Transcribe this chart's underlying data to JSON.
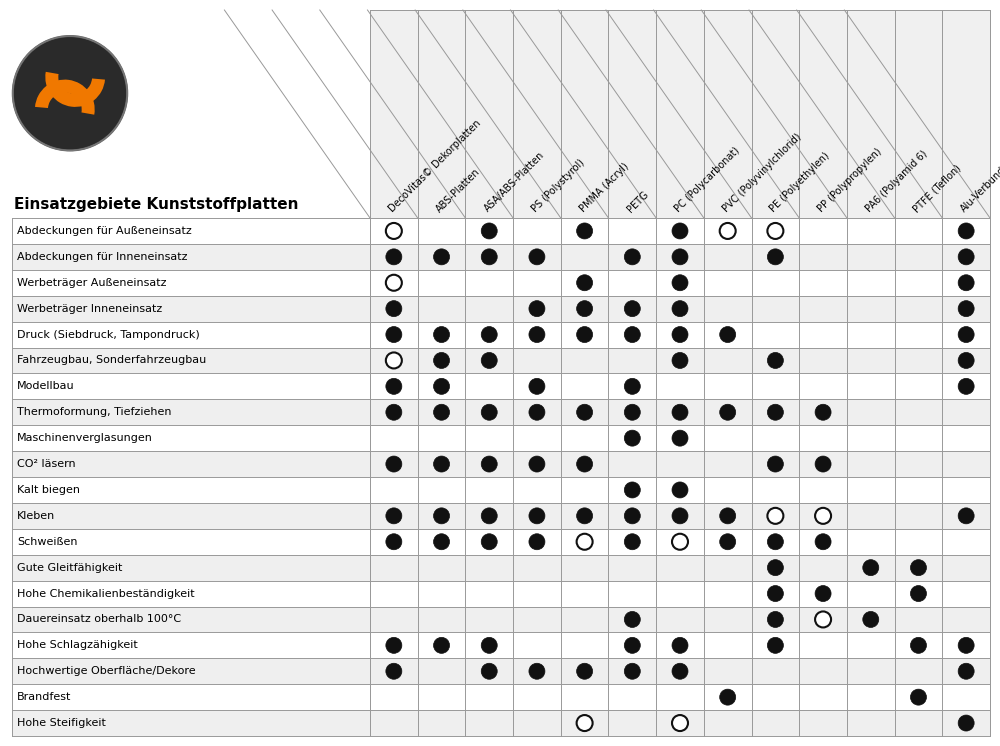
{
  "title": "Einsatzgebiete Kunststoffplatten",
  "columns": [
    "DecoVitas© Dekorplatten",
    "ABS-Platten",
    "ASA/ABS-Platten",
    "PS (Polystyrol)",
    "PMMA (Acryl)",
    "PETG",
    "PC (Polycarbonat)",
    "PVC (Polyvinylchlorid)",
    "PE (Polyethylen)",
    "PP (Polypropylen)",
    "PA6 (Polyamid 6)",
    "PTFE (Teflon)",
    "Alu-Verbundplatten"
  ],
  "rows": [
    "Abdeckungen für Außeneinsatz",
    "Abdeckungen für Inneneinsatz",
    "Werbeträger Außeneinsatz",
    "Werbeträger Inneneinsatz",
    "Druck (Siebdruck, Tampondruck)",
    "Fahrzeugbau, Sonderfahrzeugbau",
    "Modellbau",
    "Thermoformung, Tiefziehen",
    "Maschinenverglasungen",
    "CO² läsern",
    "Kalt biegen",
    "Kleben",
    "Schweißen",
    "Gute Gleitfähigkeit",
    "Hohe Chemikalienbeständigkeit",
    "Dauereinsatz oberhalb 100°C",
    "Hohe Schlagzähigkeit",
    "Hochwertige Oberfläche/Dekore",
    "Brandfest",
    "Hohe Steifigkeit"
  ],
  "data": [
    [
      "O",
      "",
      "F",
      "",
      "F",
      "",
      "F",
      "O",
      "O",
      "",
      "",
      "",
      "F"
    ],
    [
      "F",
      "F",
      "F",
      "F",
      "",
      "F",
      "F",
      "",
      "F",
      "",
      "",
      "",
      "F"
    ],
    [
      "O",
      "",
      "",
      "",
      "F",
      "",
      "F",
      "",
      "",
      "",
      "",
      "",
      "F"
    ],
    [
      "F",
      "",
      "",
      "F",
      "F",
      "F",
      "F",
      "",
      "",
      "",
      "",
      "",
      "F"
    ],
    [
      "F",
      "F",
      "F",
      "F",
      "F",
      "F",
      "F",
      "F",
      "",
      "",
      "",
      "",
      "F"
    ],
    [
      "O",
      "F",
      "F",
      "",
      "",
      "",
      "F",
      "",
      "F",
      "",
      "",
      "",
      "F"
    ],
    [
      "F",
      "F",
      "",
      "F",
      "",
      "F",
      "",
      "",
      "",
      "",
      "",
      "",
      "F"
    ],
    [
      "F",
      "F",
      "F",
      "F",
      "F",
      "F",
      "F",
      "F",
      "F",
      "F",
      "",
      "",
      ""
    ],
    [
      "",
      "",
      "",
      "",
      "",
      "F",
      "F",
      "",
      "",
      "",
      "",
      "",
      ""
    ],
    [
      "F",
      "F",
      "F",
      "F",
      "F",
      "",
      "",
      "",
      "F",
      "F",
      "",
      "",
      ""
    ],
    [
      "",
      "",
      "",
      "",
      "",
      "F",
      "F",
      "",
      "",
      "",
      "",
      "",
      ""
    ],
    [
      "F",
      "F",
      "F",
      "F",
      "F",
      "F",
      "F",
      "F",
      "O",
      "O",
      "",
      "",
      "F"
    ],
    [
      "F",
      "F",
      "F",
      "F",
      "O",
      "F",
      "O",
      "F",
      "F",
      "F",
      "",
      "",
      ""
    ],
    [
      "",
      "",
      "",
      "",
      "",
      "",
      "",
      "",
      "F",
      "",
      "F",
      "F",
      ""
    ],
    [
      "",
      "",
      "",
      "",
      "",
      "",
      "",
      "",
      "F",
      "F",
      "",
      "F",
      ""
    ],
    [
      "",
      "",
      "",
      "",
      "",
      "F",
      "",
      "",
      "F",
      "O",
      "F",
      "",
      ""
    ],
    [
      "F",
      "F",
      "F",
      "",
      "",
      "F",
      "F",
      "",
      "F",
      "",
      "",
      "F",
      "F"
    ],
    [
      "F",
      "",
      "F",
      "F",
      "F",
      "F",
      "F",
      "",
      "",
      "",
      "",
      "",
      "F"
    ],
    [
      "",
      "",
      "",
      "",
      "",
      "",
      "",
      "F",
      "",
      "",
      "",
      "F",
      ""
    ],
    [
      "",
      "",
      "",
      "",
      "O",
      "",
      "O",
      "",
      "",
      "",
      "",
      "",
      "F"
    ]
  ],
  "bg_color": "#ffffff",
  "row_alt_color": "#efefef",
  "border_color": "#999999",
  "text_color": "#000000",
  "filled_circle_color": "#111111",
  "logo_orange": "#f07800",
  "logo_dark": "#2a2a2a",
  "logo_mid": "#555555"
}
